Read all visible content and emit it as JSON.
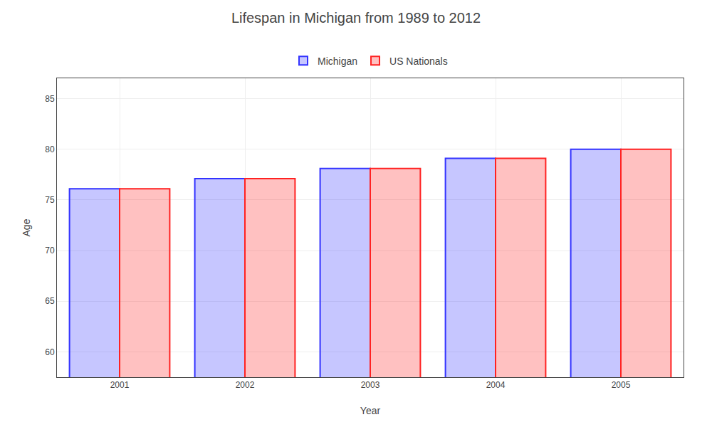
{
  "chart_data": {
    "type": "bar",
    "title": "Lifespan in Michigan from 1989 to 2012",
    "xlabel": "Year",
    "ylabel": "Age",
    "categories": [
      "2001",
      "2002",
      "2003",
      "2004",
      "2005"
    ],
    "series": [
      {
        "name": "Michigan",
        "color": "#3333ff",
        "values": [
          76.1,
          77.1,
          78.1,
          79.1,
          80.0
        ]
      },
      {
        "name": "US Nationals",
        "color": "#ff2222",
        "values": [
          76.1,
          77.1,
          78.1,
          79.1,
          80.0
        ]
      }
    ],
    "ylim": [
      57.5,
      87
    ],
    "yticks": [
      60,
      65,
      70,
      75,
      80,
      85
    ],
    "grid": true,
    "legend": "top"
  }
}
